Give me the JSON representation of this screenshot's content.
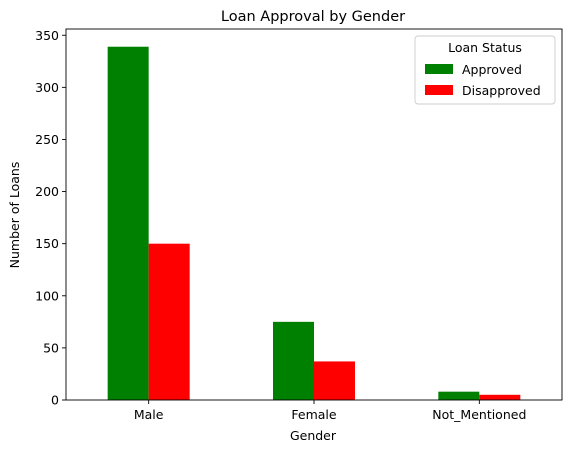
{
  "chart_data": {
    "type": "bar",
    "title": "Loan Approval by Gender",
    "xlabel": "Gender",
    "ylabel": "Number of Loans",
    "categories": [
      "Male",
      "Female",
      "Not_Mentioned"
    ],
    "series": [
      {
        "name": "Approved",
        "color": "#008000",
        "values": [
          339,
          75,
          8
        ]
      },
      {
        "name": "Disapproved",
        "color": "#ff0000",
        "values": [
          150,
          37,
          5
        ]
      }
    ],
    "ylim": [
      0,
      356
    ],
    "yticks": [
      0,
      50,
      100,
      150,
      200,
      250,
      300,
      350
    ],
    "legend": {
      "title": "Loan Status",
      "placement": "top-right"
    },
    "grid": false
  }
}
